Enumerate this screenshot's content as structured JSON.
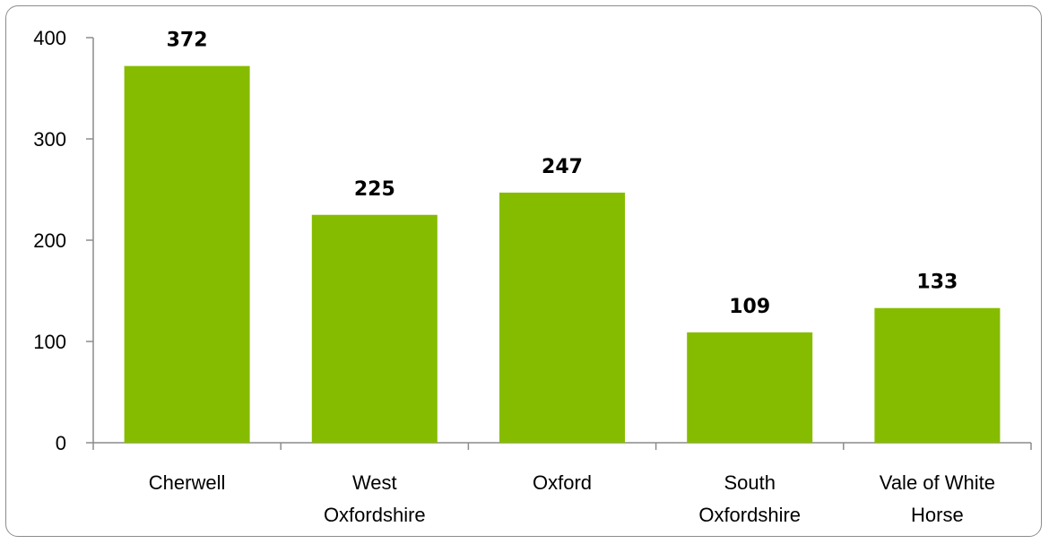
{
  "chart_data": {
    "type": "bar",
    "categories": [
      [
        "Cherwell"
      ],
      [
        "West",
        "Oxfordshire"
      ],
      [
        "Oxford"
      ],
      [
        "South",
        "Oxfordshire"
      ],
      [
        "Vale of White",
        "Horse"
      ]
    ],
    "values": [
      372,
      225,
      247,
      109,
      133
    ],
    "data_labels": [
      "372",
      "225",
      "247",
      "109",
      "133"
    ],
    "y_ticks": [
      "0",
      "100",
      "200",
      "300",
      "400"
    ],
    "ylim": [
      0,
      400
    ],
    "grid": false,
    "legend": "none",
    "bar_color": "#86BC00",
    "axis_color": "#8c8c8c"
  }
}
